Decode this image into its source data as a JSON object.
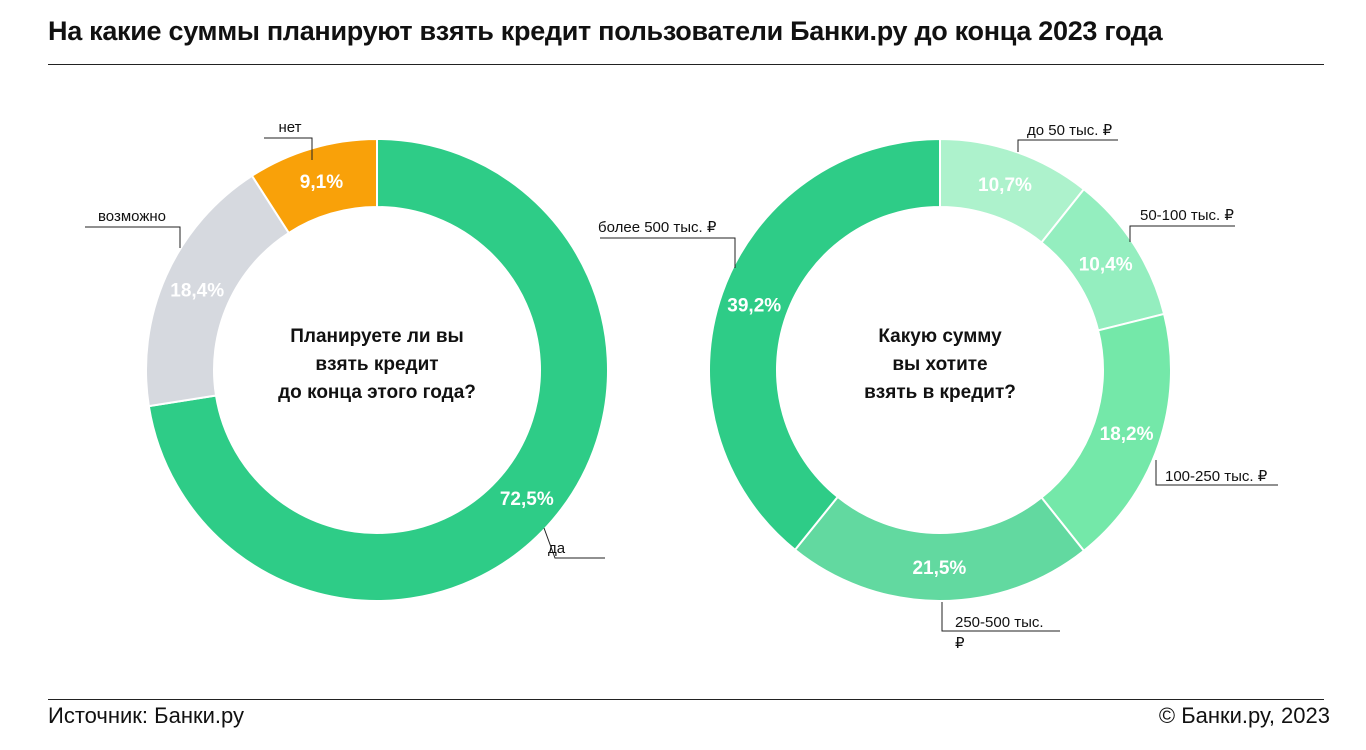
{
  "title": "На какие суммы планируют взять кредит пользователи Банки.ру до конца 2023 года",
  "footer": {
    "source": "Источник: Банки.ру",
    "copyright": "© Банки.ру, 2023"
  },
  "chart_data": [
    {
      "type": "pie",
      "donut": true,
      "center_text": [
        "Планируете ли вы",
        "взять кредит",
        "до конца этого года?"
      ],
      "slices": [
        {
          "label": "да",
          "value": 72.5,
          "value_label": "72,5%",
          "color": "#2ecc87"
        },
        {
          "label": "возможно",
          "value": 18.4,
          "value_label": "18,4%",
          "color": "#d6d9df"
        },
        {
          "label": "нет",
          "value": 9.1,
          "value_label": "9,1%",
          "color": "#f9a109"
        }
      ]
    },
    {
      "type": "pie",
      "donut": true,
      "center_text": [
        "Какую сумму",
        "вы хотите",
        "взять в кредит?"
      ],
      "slices": [
        {
          "label": "до 50 тыс. ₽",
          "value": 10.7,
          "value_label": "10,7%",
          "color": "#adf2cc"
        },
        {
          "label": "50-100 тыс. ₽",
          "value": 10.4,
          "value_label": "10,4%",
          "color": "#94eebf"
        },
        {
          "label": "100-250 тыс. ₽",
          "value": 18.2,
          "value_label": "18,2%",
          "color": "#74e8a9"
        },
        {
          "label": "250-500 тыс. ₽",
          "label_lines": [
            "250-500 тыс.",
            "₽"
          ],
          "value": 21.5,
          "value_label": "21,5%",
          "color": "#62d9a0"
        },
        {
          "label": "более 500 тыс. ₽",
          "value": 39.2,
          "value_label": "39,2%",
          "color": "#2ecc87"
        }
      ]
    }
  ]
}
